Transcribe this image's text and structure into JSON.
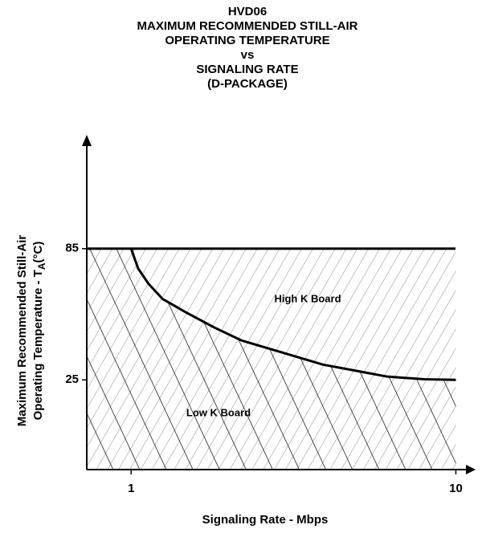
{
  "chart_data": {
    "type": "line",
    "title": [
      "HVD06",
      "MAXIMUM RECOMMENDED STILL-AIR",
      "OPERATING TEMPERATURE",
      "vs",
      "SIGNALING RATE",
      "(D-PACKAGE)"
    ],
    "xlabel": "Signaling Rate - Mbps",
    "ylabel": {
      "line1": "Maximum Recommended Still-Air",
      "line2": "Operating Temperature  -  T",
      "sub": "A",
      "unit": "(°C)"
    },
    "x": [
      1,
      1.05,
      1.13,
      1.25,
      1.47,
      1.8,
      2.19,
      3,
      3.89,
      5,
      6.15,
      8,
      10
    ],
    "values": [
      85,
      76,
      69,
      62,
      56,
      49,
      43,
      37,
      32,
      29,
      26.5,
      25.3,
      25
    ],
    "color": "#000000",
    "xscale": "log",
    "xlim": [
      0.73,
      11.5
    ],
    "xticks": [
      1,
      10
    ],
    "ylim": [
      -16,
      137
    ],
    "yticks": [
      25,
      85
    ],
    "annotations": [
      "High K Board",
      "Low K Board"
    ]
  }
}
